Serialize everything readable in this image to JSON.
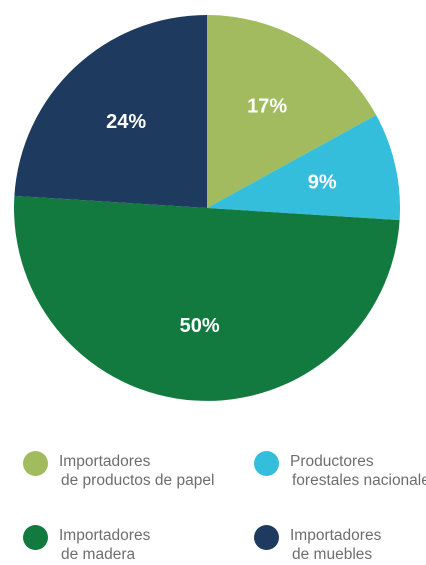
{
  "chart_data": {
    "type": "pie",
    "title": "",
    "unit": "%",
    "slices": [
      {
        "label": "Importadores de productos de papel",
        "value": 17,
        "display": "17%",
        "color": "#a1bb5e"
      },
      {
        "label": "Productores forestales nacionales",
        "value": 9,
        "display": "9%",
        "color": "#34bedc"
      },
      {
        "label": "Importadores de madera",
        "value": 50,
        "display": "50%",
        "color": "#137a3f"
      },
      {
        "label": "Importadores de muebles",
        "value": 24,
        "display": "24%",
        "color": "#1e3a5f"
      }
    ],
    "start_angle_deg": 0,
    "direction": "clockwise",
    "legend_position": "bottom"
  },
  "legend": [
    {
      "line1": "Importadores",
      "line2": "de productos de papel",
      "color": "#a1bb5e",
      "icon": "green-dot"
    },
    {
      "line1": "Productores",
      "line2": "forestales nacionales",
      "color": "#34bedc",
      "icon": "cyan-dot"
    },
    {
      "line1": "Importadores",
      "line2": "de madera",
      "color": "#137a3f",
      "icon": "dark-green-dot"
    },
    {
      "line1": "Importadores",
      "line2": "de muebles",
      "color": "#1e3a5f",
      "icon": "navy-dot"
    }
  ]
}
